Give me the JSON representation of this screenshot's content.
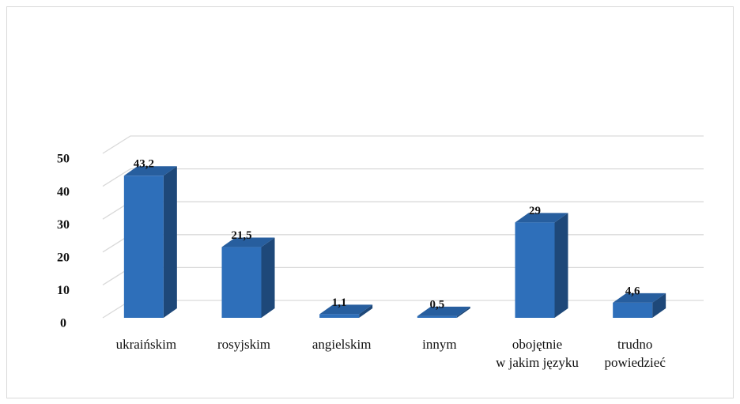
{
  "chart_data": {
    "type": "bar3d",
    "categories": [
      [
        "ukraińskim"
      ],
      [
        "rosyjskim"
      ],
      [
        "angielskim"
      ],
      [
        "innym"
      ],
      [
        "obojętnie",
        "w jakim języku"
      ],
      [
        "trudno",
        "powiedzieć"
      ]
    ],
    "values": [
      43.2,
      21.5,
      1.1,
      0.5,
      29,
      4.6
    ],
    "value_labels": [
      "43,2",
      "21,5",
      "1,1",
      "0,5",
      "29",
      "4,6"
    ],
    "color": "#2e6fba",
    "ylim": [
      0,
      50
    ],
    "yticks": [
      0,
      10,
      20,
      30,
      40,
      50
    ],
    "grid": true
  }
}
